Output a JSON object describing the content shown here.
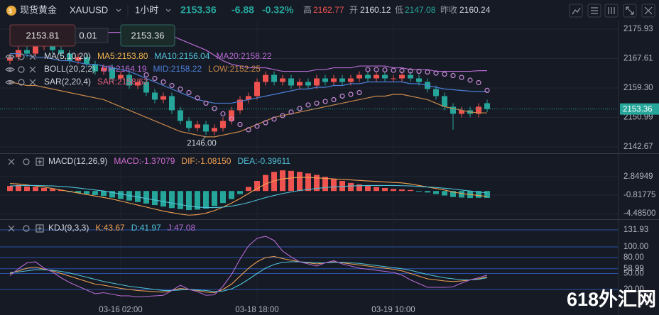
{
  "header": {
    "name": "现货黄金",
    "symbol": "XAUUSD",
    "interval": "1小时",
    "price": "2153.36",
    "change": "-6.88",
    "change_pct": "-0.32%",
    "high_label": "高",
    "high": "2162.77",
    "open_label": "开",
    "open": "2160.12",
    "low_label": "低",
    "low": "2147.08",
    "prev_label": "昨收",
    "prev": "2160.24"
  },
  "order_panel": {
    "sell": "2153.81",
    "lot": "0.01",
    "buy": "2153.36"
  },
  "watermark": "618外汇网",
  "chart_data": [
    {
      "type": "candlestick",
      "categories": [
        null,
        null,
        null,
        null,
        null,
        null,
        null,
        null,
        null,
        null,
        null,
        null,
        null,
        "03-16 02:00",
        null,
        null,
        null,
        null,
        null,
        null,
        null,
        null,
        null,
        null,
        null,
        null,
        null,
        null,
        null,
        "03-18 18:00",
        null,
        null,
        null,
        null,
        null,
        null,
        null,
        null,
        null,
        null,
        null,
        null,
        null,
        null,
        null,
        "03-19 10:00",
        null,
        null,
        null,
        null,
        null,
        null,
        null,
        null,
        null,
        null,
        null
      ],
      "open": [
        2167,
        2168,
        2170,
        2169,
        2171,
        2172,
        2170,
        2169,
        2167,
        2168,
        2166,
        2164,
        2165,
        2162,
        2163,
        2160,
        2161,
        2158,
        2156,
        2157,
        2153,
        2150,
        2148,
        2149,
        2147,
        2148,
        2150,
        2153,
        2156,
        2157,
        2161,
        2163,
        2161,
        2162,
        2160,
        2161,
        2160,
        2162,
        2161,
        2162,
        2161,
        2162,
        2163,
        2162,
        2163,
        2162,
        2162,
        2163,
        2162,
        2161,
        2159,
        2157,
        2154,
        2152,
        2153,
        2152,
        2155
      ],
      "high": [
        2169,
        2171,
        2171,
        2172,
        2173,
        2173,
        2171,
        2170,
        2169,
        2169,
        2167,
        2166,
        2166,
        2164,
        2164,
        2162,
        2162,
        2159,
        2158,
        2158,
        2154,
        2151,
        2150,
        2150,
        2149,
        2151,
        2154,
        2157,
        2158,
        2162,
        2164,
        2164,
        2163,
        2163,
        2162,
        2162,
        2163,
        2163,
        2163,
        2163,
        2163,
        2164,
        2164,
        2164,
        2164,
        2163,
        2164,
        2164,
        2163,
        2162,
        2160,
        2158,
        2155,
        2154,
        2154,
        2155,
        2156
      ],
      "low": [
        2166,
        2167,
        2168,
        2168,
        2170,
        2169,
        2168,
        2166,
        2166,
        2165,
        2163,
        2163,
        2161,
        2161,
        2159,
        2159,
        2157,
        2155,
        2155,
        2152,
        2149,
        2147,
        2147,
        2146,
        2146,
        2147,
        2149,
        2152,
        2155,
        2156,
        2160,
        2160,
        2160,
        2159,
        2159,
        2159,
        2159,
        2160,
        2160,
        2160,
        2160,
        2161,
        2161,
        2161,
        2161,
        2161,
        2161,
        2161,
        2160,
        2158,
        2156,
        2153,
        2147.5,
        2151,
        2151,
        2151,
        2152.5
      ],
      "close": [
        2168,
        2170,
        2169,
        2171,
        2172,
        2170,
        2169,
        2167,
        2168,
        2166,
        2164,
        2165,
        2162,
        2163,
        2160,
        2161,
        2158,
        2156,
        2157,
        2153,
        2150,
        2148,
        2149,
        2147,
        2148,
        2150,
        2153,
        2156,
        2157,
        2161,
        2163,
        2161,
        2162,
        2160,
        2161,
        2160,
        2162,
        2161,
        2162,
        2161,
        2162,
        2163,
        2162,
        2163,
        2162,
        2162,
        2163,
        2162,
        2161,
        2159,
        2157,
        2154,
        2152,
        2153,
        2152,
        2154,
        2153.36
      ],
      "up_color": "#ef5350",
      "down_color": "#26a69a",
      "lines": [
        {
          "color": "#b56ad1",
          "values": [
            2177,
            2177,
            2176.5,
            2176,
            2176,
            2176,
            2175.5,
            2175.5,
            2175,
            2175,
            2175,
            2175,
            2175,
            2175,
            2174.5,
            2174.5,
            2174.5,
            2174.5,
            2174.5,
            2174,
            2173,
            2172,
            2171,
            2170,
            2168.5,
            2167,
            2166,
            2165.5,
            2165,
            2165,
            2165,
            2164.5,
            2164,
            2164,
            2164,
            2164,
            2164.5,
            2164.5,
            2165,
            2165,
            2165,
            2165.5,
            2165.5,
            2165.5,
            2165.5,
            2165,
            2165,
            2164.5,
            2164.5,
            2164.5,
            2164,
            2164,
            2164,
            2164,
            2164,
            2164.2,
            2164.19
          ]
        },
        {
          "color": "#4a7fd6",
          "values": [
            2169,
            2169,
            2168.5,
            2168,
            2168,
            2167.5,
            2167,
            2167,
            2166.5,
            2166,
            2166,
            2165.5,
            2165,
            2164.5,
            2164,
            2163,
            2162,
            2161,
            2160,
            2159,
            2158,
            2157,
            2156,
            2155.5,
            2155,
            2155,
            2155,
            2155.5,
            2156,
            2156.5,
            2157,
            2157.5,
            2158,
            2158.5,
            2159,
            2159,
            2159.5,
            2159.5,
            2160,
            2160,
            2160.5,
            2160.5,
            2161,
            2161,
            2161,
            2161,
            2161,
            2160.5,
            2160.5,
            2160,
            2159.5,
            2159,
            2158.8,
            2158.6,
            2158.4,
            2158.3,
            2158.22
          ]
        },
        {
          "color": "#c8884a",
          "values": [
            2161,
            2160.5,
            2160,
            2160,
            2159.5,
            2159,
            2158.5,
            2158,
            2157.5,
            2157,
            2156.5,
            2156,
            2155,
            2154,
            2153,
            2152,
            2151,
            2150,
            2149,
            2148,
            2147,
            2146.5,
            2146,
            2145.5,
            2145.5,
            2146,
            2146.5,
            2147,
            2148,
            2149,
            2150,
            2151,
            2151.5,
            2152,
            2152.5,
            2153,
            2153.5,
            2154,
            2154.5,
            2155,
            2155.5,
            2156,
            2156.5,
            2157,
            2157,
            2157.5,
            2157.5,
            2157,
            2156.5,
            2156,
            2155,
            2154,
            2153.5,
            2153,
            2152.5,
            2152.3,
            2152.25
          ]
        }
      ],
      "dots": {
        "color": "#c98ad8",
        "values": [
          null,
          null,
          null,
          null,
          null,
          null,
          null,
          null,
          null,
          null,
          null,
          null,
          null,
          null,
          null,
          null,
          2163,
          2162,
          2161,
          2160,
          2159,
          2158,
          2156.5,
          2155,
          2153.5,
          2152,
          2150.5,
          2149,
          2147.5,
          2148.5,
          2149.5,
          2150.5,
          2151.5,
          2152.5,
          2153.5,
          2154.5,
          2155,
          2155.5,
          2156,
          2157,
          2157.5,
          2158,
          2164.5,
          2164.5,
          2164.4,
          2164.3,
          2164.2,
          2164.1,
          2164,
          2163.8,
          2163.5,
          2163.2,
          2162.8,
          2162.3,
          2161.5,
          2160.8,
          2158.62
        ]
      },
      "last_price": 2153.36,
      "low_label": "2146.00",
      "ylim": [
        2141.07,
        2178.13
      ],
      "yticks": [
        2175.93,
        2167.61,
        {
          "value": 2159.3,
          "label": "2159.30"
        },
        2150.99,
        2142.67
      ],
      "legend": [
        [
          {
            "text": "MA(5,10,20)",
            "color": "#d1d4dc"
          },
          {
            "text": "MA5:2153.80",
            "color": "#f0b34a"
          },
          {
            "text": "MA10:2156.04",
            "color": "#4fc3d8"
          },
          {
            "text": "MA20:2158.22",
            "color": "#b56ad1"
          }
        ],
        [
          {
            "text": "BOLL(20,2,2)",
            "color": "#d1d4dc"
          },
          {
            "text": "UP:2164.19",
            "color": "#b56ad1"
          },
          {
            "text": "MID:2158.22",
            "color": "#4a7fd6"
          },
          {
            "text": "LOW:2152.25",
            "color": "#c8884a"
          }
        ],
        [
          {
            "text": "SAR(2,20,4)",
            "color": "#d1d4dc"
          },
          {
            "text": "SAR:2158.62",
            "color": "#e0607a"
          }
        ]
      ]
    },
    {
      "type": "bar",
      "values": [
        1.0,
        1.2,
        0.9,
        0.8,
        0.6,
        0.4,
        0.2,
        -0.2,
        -0.4,
        -0.6,
        -0.8,
        -1.0,
        -1.3,
        -1.6,
        -1.9,
        -2.2,
        -2.5,
        -2.8,
        -3.1,
        -3.4,
        -3.6,
        -3.8,
        -3.7,
        -3.5,
        -3.0,
        -2.4,
        -1.6,
        -0.6,
        0.8,
        2.0,
        3.2,
        3.8,
        4.1,
        4.0,
        3.8,
        3.5,
        3.2,
        2.8,
        2.4,
        2.0,
        1.6,
        1.3,
        1.0,
        0.8,
        0.6,
        0.4,
        0.3,
        0.2,
        -0.1,
        -0.3,
        -0.6,
        -0.9,
        -1.2,
        -1.3,
        -1.4,
        -1.35,
        -1.37079
      ],
      "pos_color": "#ef5350",
      "neg_color": "#26a69a",
      "lines": [
        {
          "color": "#f0a050",
          "values": [
            1.5,
            1.4,
            1.2,
            1.0,
            0.8,
            0.5,
            0.2,
            -0.1,
            -0.4,
            -0.7,
            -1.0,
            -1.3,
            -1.6,
            -2.0,
            -2.4,
            -2.8,
            -3.2,
            -3.6,
            -4.0,
            -4.3,
            -4.6,
            -4.8,
            -4.7,
            -4.4,
            -3.9,
            -3.2,
            -2.4,
            -1.5,
            -0.5,
            0.5,
            1.4,
            2.0,
            2.4,
            2.6,
            2.7,
            2.7,
            2.6,
            2.5,
            2.4,
            2.3,
            2.2,
            2.1,
            2.0,
            1.9,
            1.8,
            1.7,
            1.6,
            1.4,
            1.1,
            0.8,
            0.5,
            0.2,
            -0.2,
            -0.5,
            -0.7,
            -0.9,
            -1.0815
          ]
        },
        {
          "color": "#4fc3d8",
          "values": [
            1.0,
            1.05,
            1.1,
            1.1,
            1.05,
            1.0,
            0.9,
            0.8,
            0.6,
            0.4,
            0.2,
            0,
            -0.3,
            -0.6,
            -0.9,
            -1.2,
            -1.5,
            -1.8,
            -2.1,
            -2.4,
            -2.7,
            -3.0,
            -3.2,
            -3.3,
            -3.3,
            -3.2,
            -3.0,
            -2.7,
            -2.3,
            -1.8,
            -1.3,
            -0.9,
            -0.5,
            -0.2,
            0.1,
            0.3,
            0.5,
            0.7,
            0.8,
            0.9,
            1.0,
            1.05,
            1.1,
            1.1,
            1.1,
            1.1,
            1.05,
            1.0,
            0.9,
            0.8,
            0.7,
            0.55,
            0.4,
            0.2,
            0,
            -0.2,
            -0.39611
          ]
        }
      ],
      "ylim": [
        -5.47,
        7.22
      ],
      "yticks": [
        2.84949,
        -0.81775,
        {
          "value": -4.485,
          "label": "-4.48500"
        }
      ],
      "legend": [
        [
          {
            "text": "MACD(12,26,9)",
            "color": "#d1d4dc"
          },
          {
            "text": "MACD:-1.37079",
            "color": "#d06bd0"
          },
          {
            "text": "DIF:-1.08150",
            "color": "#f0a050"
          },
          {
            "text": "DEA:-0.39611",
            "color": "#4fc3d8"
          }
        ]
      ]
    },
    {
      "type": "line",
      "series": [
        {
          "color": "#f0a050",
          "values": [
            50,
            55,
            60,
            62,
            58,
            55,
            50,
            45,
            40,
            35,
            30,
            28,
            25,
            22,
            20,
            18,
            17,
            16,
            15,
            18,
            22,
            20,
            18,
            15,
            14,
            20,
            30,
            45,
            60,
            72,
            80,
            82,
            78,
            75,
            72,
            70,
            68,
            70,
            72,
            70,
            68,
            66,
            64,
            62,
            60,
            58,
            55,
            50,
            45,
            40,
            38,
            36,
            35,
            36,
            38,
            40,
            43.67
          ]
        },
        {
          "color": "#4fc3d8",
          "values": [
            52,
            53,
            55,
            57,
            57,
            56,
            54,
            51,
            47,
            43,
            39,
            35,
            32,
            29,
            26,
            24,
            22,
            20,
            18,
            18,
            19,
            20,
            19,
            18,
            16,
            17,
            21,
            29,
            39,
            50,
            60,
            67,
            71,
            72,
            72,
            71,
            70,
            70,
            71,
            71,
            70,
            69,
            67,
            65,
            63,
            61,
            59,
            56,
            52,
            48,
            45,
            42,
            40,
            38,
            38,
            39,
            41.97
          ]
        },
        {
          "color": "#b56ad1",
          "values": [
            46,
            59,
            70,
            72,
            60,
            53,
            42,
            33,
            26,
            19,
            12,
            14,
            11,
            8,
            8,
            6,
            7,
            8,
            9,
            18,
            28,
            20,
            16,
            9,
            10,
            26,
            48,
            77,
            102,
            116,
            120,
            112,
            92,
            81,
            72,
            68,
            64,
            70,
            74,
            68,
            64,
            60,
            58,
            56,
            54,
            52,
            47,
            38,
            31,
            24,
            24,
            24,
            25,
            32,
            38,
            42,
            47.08
          ]
        }
      ],
      "grid_color": "#2f5fc8",
      "ylim": [
        -9.33,
        148
      ],
      "yticks": [
        131.93,
        {
          "value": 100,
          "label": "100.00"
        },
        {
          "value": 80,
          "label": "80.00"
        },
        58.99,
        {
          "value": 50,
          "label": "50.00"
        },
        {
          "value": 20,
          "label": "20.00"
        }
      ],
      "legend": [
        [
          {
            "text": "KDJ(9,3,3)",
            "color": "#d1d4dc"
          },
          {
            "text": "K:43.67",
            "color": "#f0a050"
          },
          {
            "text": "D:41.97",
            "color": "#4fc3d8"
          },
          {
            "text": "J:47.08",
            "color": "#b56ad1"
          }
        ]
      ]
    }
  ]
}
